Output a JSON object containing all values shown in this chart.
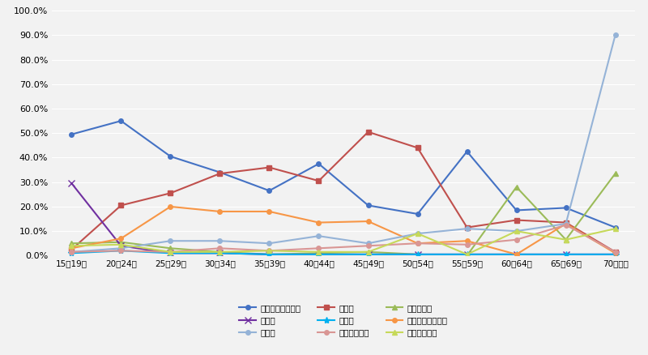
{
  "categories": [
    "15～19歳",
    "20～24歳",
    "25～29歳",
    "30～34歳",
    "35～39歳",
    "40～44歳",
    "45～49歳",
    "50～54歳",
    "55～59歳",
    "60～64歳",
    "65～69歳",
    "70歳以上"
  ],
  "series": [
    {
      "label": "就職・転職・転業",
      "color": "#4472c4",
      "marker": "o",
      "linestyle": "-",
      "markersize": 4,
      "linewidth": 1.5,
      "values": [
        49.5,
        55.0,
        40.5,
        34.0,
        26.5,
        37.5,
        20.5,
        17.0,
        42.5,
        18.5,
        19.5,
        11.5
      ]
    },
    {
      "label": "転　動",
      "color": "#c0504d",
      "marker": "s",
      "linestyle": "-",
      "markersize": 4,
      "linewidth": 1.5,
      "values": [
        2.5,
        20.5,
        25.5,
        33.5,
        36.0,
        30.5,
        50.5,
        44.0,
        11.5,
        14.5,
        13.5,
        1.5
      ]
    },
    {
      "label": "退職・廃業",
      "color": "#9bbb59",
      "marker": "^",
      "linestyle": "-",
      "markersize": 5,
      "linewidth": 1.5,
      "values": [
        5.0,
        5.5,
        3.0,
        1.5,
        0.5,
        1.0,
        1.5,
        0.5,
        0.0,
        28.0,
        6.5,
        33.5
      ]
    },
    {
      "label": "就　学",
      "color": "#7030a0",
      "marker": "x",
      "linestyle": "-",
      "markersize": 6,
      "linewidth": 1.5,
      "values": [
        29.5,
        4.0,
        1.0,
        1.0,
        0.5,
        0.5,
        0.5,
        0.5,
        0.5,
        0.5,
        0.5,
        0.5
      ]
    },
    {
      "label": "卒　業",
      "color": "#00b0f0",
      "marker": "*",
      "linestyle": "-",
      "markersize": 6,
      "linewidth": 1.5,
      "values": [
        1.0,
        2.0,
        1.0,
        1.0,
        0.5,
        0.5,
        0.5,
        0.5,
        0.5,
        0.5,
        0.5,
        0.5
      ]
    },
    {
      "label": "結婚・離婚・縁組",
      "color": "#f79646",
      "marker": "o",
      "linestyle": "-",
      "markersize": 4,
      "linewidth": 1.5,
      "values": [
        3.0,
        7.0,
        20.0,
        18.0,
        18.0,
        13.5,
        14.0,
        5.0,
        6.0,
        0.5,
        13.0,
        1.0
      ]
    },
    {
      "label": "住　宅",
      "color": "#95b3d7",
      "marker": "o",
      "linestyle": "-",
      "markersize": 4,
      "linewidth": 1.5,
      "values": [
        1.5,
        3.0,
        6.0,
        6.0,
        5.0,
        8.0,
        5.0,
        9.0,
        11.0,
        10.0,
        13.0,
        90.0
      ]
    },
    {
      "label": "交通の利便性",
      "color": "#d99694",
      "marker": "o",
      "linestyle": "-",
      "markersize": 4,
      "linewidth": 1.5,
      "values": [
        1.5,
        2.0,
        1.5,
        3.0,
        2.0,
        3.0,
        4.0,
        5.0,
        4.5,
        6.5,
        12.5,
        1.5
      ]
    },
    {
      "label": "生活の利便性",
      "color": "#c6d95a",
      "marker": "^",
      "linestyle": "-",
      "markersize": 5,
      "linewidth": 1.5,
      "values": [
        4.0,
        4.5,
        1.5,
        1.5,
        2.0,
        1.5,
        1.5,
        9.0,
        0.5,
        10.0,
        6.5,
        11.0
      ]
    }
  ],
  "ylim": [
    0.0,
    100.0
  ],
  "yticks": [
    0.0,
    10.0,
    20.0,
    30.0,
    40.0,
    50.0,
    60.0,
    70.0,
    80.0,
    90.0,
    100.0
  ],
  "background_color": "#f2f2f2",
  "plot_bg_color": "#f2f2f2",
  "grid_color": "#ffffff",
  "legend_order": [
    0,
    1,
    2,
    3,
    4,
    5,
    6,
    7,
    8
  ]
}
